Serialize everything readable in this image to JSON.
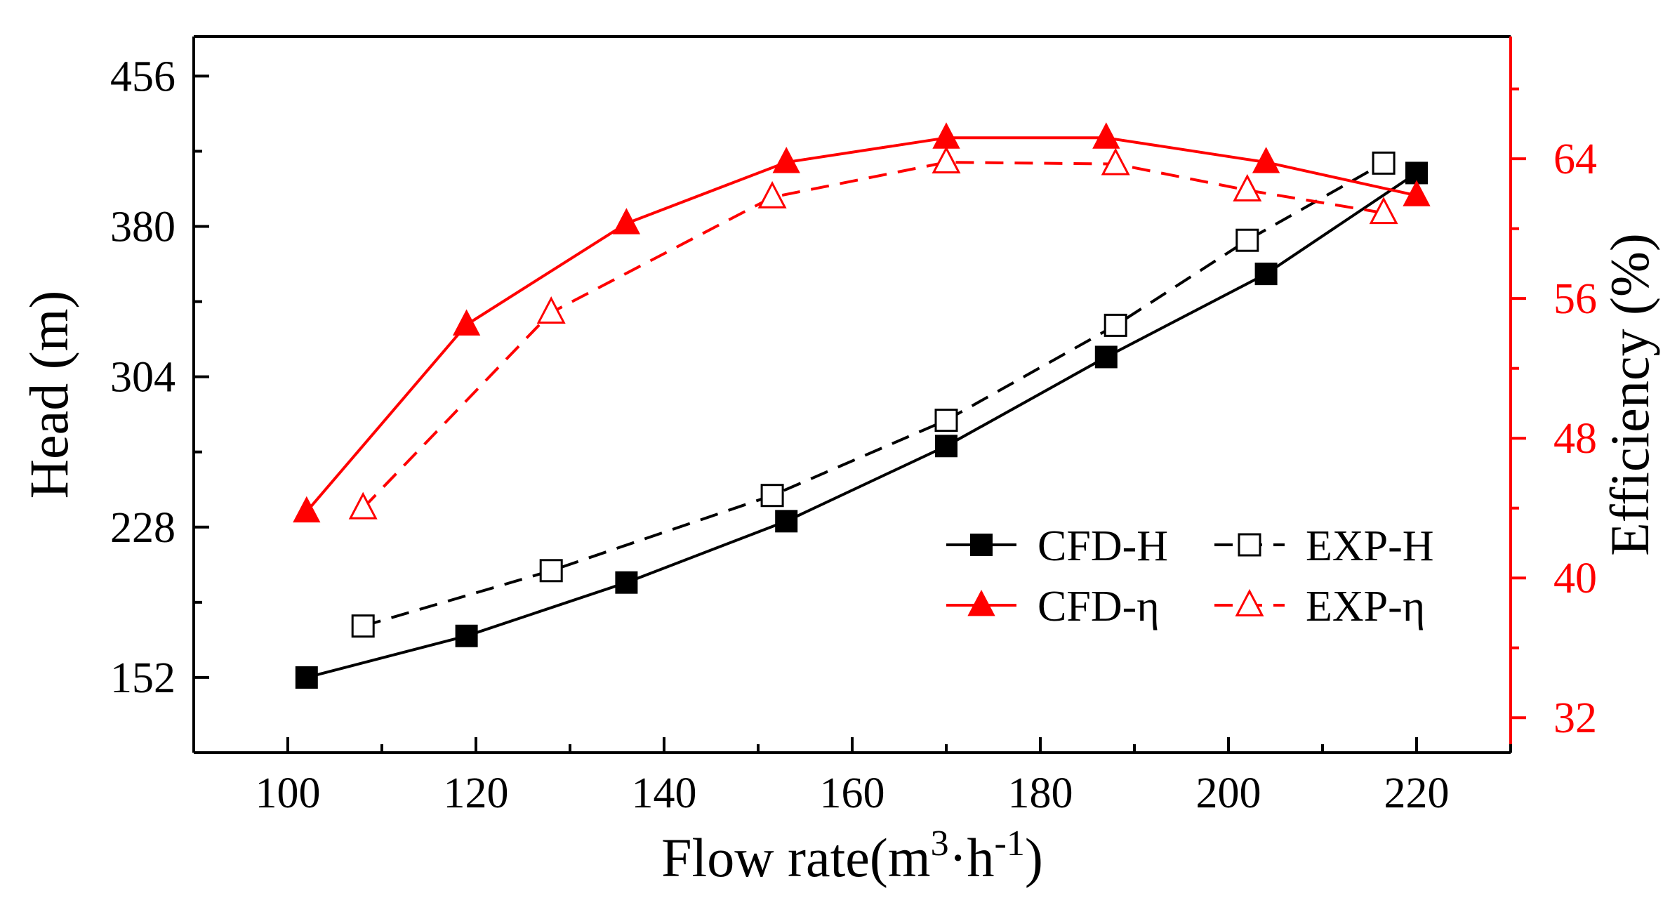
{
  "chart_data": {
    "type": "line",
    "xlabel": "Flow rate(m",
    "xlabel_sup1": "3",
    "xlabel_mid": "·h",
    "xlabel_sup2": "-1",
    "xlabel_end": ")",
    "ylabel_left": "Head (m)",
    "ylabel_right": "Efficiency (%)",
    "xlim": [
      90,
      230
    ],
    "ylim_left": [
      114,
      476
    ],
    "ylim_right": [
      30,
      71
    ],
    "x_ticks": [
      100,
      120,
      140,
      160,
      180,
      200,
      220
    ],
    "y_ticks_left": [
      152,
      228,
      304,
      380,
      456
    ],
    "y_ticks_right": [
      32,
      40,
      48,
      56,
      64
    ],
    "colors": {
      "head": "#000000",
      "efficiency": "#ff0000"
    },
    "legend_position": "lower-right",
    "grid": false,
    "series": [
      {
        "name": "CFD-H",
        "axis": "left",
        "color": "#000000",
        "dash": "solid",
        "marker": "square-filled",
        "x": [
          102,
          119,
          136,
          153,
          170,
          187,
          204,
          220
        ],
        "y": [
          152,
          173,
          200,
          231,
          269,
          314,
          356,
          407
        ]
      },
      {
        "name": "EXP-H",
        "axis": "left",
        "color": "#000000",
        "dash": "dashed",
        "marker": "square-open",
        "x": [
          108,
          128,
          151.5,
          170,
          188,
          202,
          216.5
        ],
        "y": [
          178,
          206,
          244,
          282,
          330,
          373,
          412
        ]
      },
      {
        "name": "CFD-η",
        "axis": "right",
        "color": "#ff0000",
        "dash": "solid",
        "marker": "triangle-filled",
        "x": [
          102,
          119,
          136,
          153,
          170,
          187,
          204,
          220
        ],
        "y": [
          43.8,
          54.5,
          60.3,
          63.8,
          65.2,
          65.2,
          63.8,
          61.9
        ]
      },
      {
        "name": "EXP-η",
        "axis": "right",
        "color": "#ff0000",
        "dash": "dashed",
        "marker": "triangle-open",
        "x": [
          108,
          128,
          151.5,
          170,
          188,
          202,
          216.5
        ],
        "y": [
          44.0,
          55.2,
          61.8,
          63.8,
          63.7,
          62.2,
          60.9
        ]
      }
    ]
  }
}
